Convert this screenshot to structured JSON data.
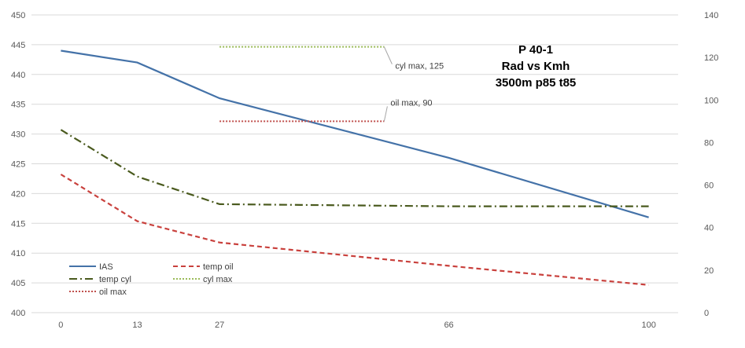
{
  "chart_data": {
    "type": "line",
    "title": [
      "P 40-1",
      "Rad vs Kmh",
      "3500m p85 t85"
    ],
    "x": [
      0,
      13,
      27,
      66,
      100
    ],
    "x_tick_labels": [
      "0",
      "13",
      "27",
      "66",
      "100"
    ],
    "ylim_left": [
      400,
      450
    ],
    "yticks_left": [
      "400",
      "405",
      "410",
      "415",
      "420",
      "425",
      "430",
      "435",
      "440",
      "445",
      "450"
    ],
    "ylim_right": [
      0,
      140
    ],
    "yticks_right": [
      "0",
      "20",
      "40",
      "60",
      "80",
      "100",
      "120",
      "140"
    ],
    "grid": "horizontal",
    "legend_position": "bottom-left",
    "series": [
      {
        "name": "IAS",
        "axis": "left",
        "style": "solid",
        "color": "#4472a8",
        "points": [
          [
            0,
            444
          ],
          [
            13,
            442
          ],
          [
            27,
            436
          ],
          [
            66,
            426
          ],
          [
            100,
            416
          ]
        ]
      },
      {
        "name": "temp oil",
        "axis": "right",
        "style": "dashed",
        "color": "#c9413d",
        "points": [
          [
            0,
            65
          ],
          [
            13,
            43
          ],
          [
            27,
            33
          ],
          [
            66,
            22
          ],
          [
            100,
            13
          ]
        ]
      },
      {
        "name": "temp cyl",
        "axis": "right",
        "style": "dashdot",
        "color": "#4a5a1e",
        "points": [
          [
            0,
            86
          ],
          [
            13,
            64
          ],
          [
            27,
            51
          ],
          [
            66,
            50
          ],
          [
            100,
            50
          ]
        ]
      },
      {
        "name": "cyl max",
        "axis": "right",
        "style": "dotted",
        "color": "#9bbb59",
        "points": [
          [
            27,
            125
          ],
          [
            55,
            125
          ]
        ]
      },
      {
        "name": "oil max",
        "axis": "right",
        "style": "dotted",
        "color": "#c0504d",
        "points": [
          [
            27,
            90
          ],
          [
            55,
            90
          ]
        ]
      }
    ],
    "annotations": [
      {
        "label": "cyl max, 125",
        "series": "cyl max"
      },
      {
        "label": "oil max, 90",
        "series": "oil max"
      }
    ]
  }
}
